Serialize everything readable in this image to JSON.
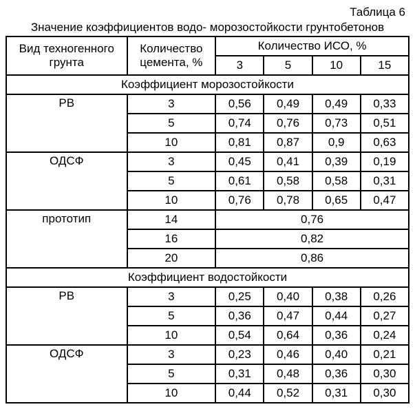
{
  "label": "Таблица 6",
  "title": "Значение коэффициентов водо- морозостойкости грунтобетонов",
  "headers": {
    "col1": "Вид техногенного грунта",
    "col2": "Количество цемента, %",
    "isoHeader": "Количество ИСО, %",
    "iso": [
      "3",
      "5",
      "10",
      "15"
    ]
  },
  "sections": {
    "frost": "Коэффициент морозостойкости",
    "water": "Коэффициент водостойкости"
  },
  "groups": {
    "rv": "РВ",
    "odsf": "ОДСФ",
    "proto": "прототип"
  },
  "frost": {
    "rv": [
      {
        "cement": "3",
        "v": [
          "0,56",
          "0,49",
          "0,49",
          "0,33"
        ]
      },
      {
        "cement": "5",
        "v": [
          "0,74",
          "0,76",
          "0,73",
          "0,51"
        ]
      },
      {
        "cement": "10",
        "v": [
          "0,81",
          "0,87",
          "0,9",
          "0,63"
        ]
      }
    ],
    "odsf": [
      {
        "cement": "3",
        "v": [
          "0,45",
          "0,41",
          "0,39",
          "0,19"
        ]
      },
      {
        "cement": "5",
        "v": [
          "0,61",
          "0,58",
          "0,58",
          "0,31"
        ]
      },
      {
        "cement": "10",
        "v": [
          "0,76",
          "0,78",
          "0,65",
          "0,47"
        ]
      }
    ],
    "proto": [
      {
        "cement": "14",
        "merged": "0,76"
      },
      {
        "cement": "16",
        "merged": "0,82"
      },
      {
        "cement": "20",
        "merged": "0,86"
      }
    ]
  },
  "water": {
    "rv": [
      {
        "cement": "3",
        "v": [
          "0,25",
          "0,40",
          "0,38",
          "0,26"
        ]
      },
      {
        "cement": "5",
        "v": [
          "0,36",
          "0,47",
          "0,44",
          "0,27"
        ]
      },
      {
        "cement": "10",
        "v": [
          "0,54",
          "0,64",
          "0,36",
          "0,24"
        ]
      }
    ],
    "odsf": [
      {
        "cement": "3",
        "v": [
          "0,23",
          "0,46",
          "0,40",
          "0,21"
        ]
      },
      {
        "cement": "5",
        "v": [
          "0,31",
          "0,48",
          "0,36",
          "0,30"
        ]
      },
      {
        "cement": "10",
        "v": [
          "0,44",
          "0,52",
          "0,31",
          "0,30"
        ]
      }
    ]
  }
}
